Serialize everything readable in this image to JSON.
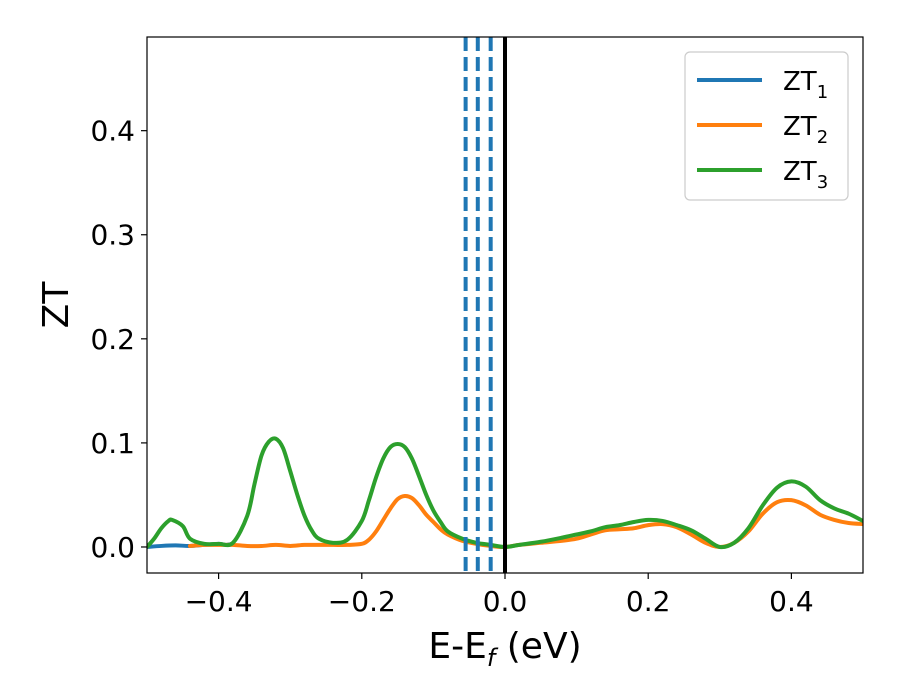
{
  "chart_data": {
    "type": "line",
    "xlabel": "E-E",
    "xlabel_sub": "f",
    "xlabel_unit": " (eV)",
    "ylabel": "ZT",
    "xlim": [
      -0.5,
      0.5
    ],
    "ylim": [
      -0.025,
      0.49
    ],
    "x_ticks": [
      -0.4,
      -0.2,
      0.0,
      0.2,
      0.4
    ],
    "x_tick_labels": [
      "−0.4",
      "−0.2",
      "0.0",
      "0.2",
      "0.4"
    ],
    "y_ticks": [
      0.0,
      0.1,
      0.2,
      0.3,
      0.4
    ],
    "y_tick_labels": [
      "0.0",
      "0.1",
      "0.2",
      "0.3",
      "0.4"
    ],
    "grid": false,
    "legend_position": "top-right",
    "vertical_lines": [
      {
        "x": -0.055,
        "style": "dashed",
        "color": "#1f77b4"
      },
      {
        "x": -0.038,
        "style": "dashed",
        "color": "#1f77b4"
      },
      {
        "x": -0.02,
        "style": "dashed",
        "color": "#1f77b4"
      },
      {
        "x": 0.0,
        "style": "solid",
        "color": "#000000"
      }
    ],
    "series": [
      {
        "name": "ZT",
        "name_sub": "1",
        "color": "#1f77b4",
        "x": [
          -0.5,
          -0.48,
          -0.46,
          -0.44,
          -0.42,
          -0.4,
          -0.39,
          -0.38
        ],
        "y": [
          0.0,
          0.001,
          0.0015,
          0.001,
          0.002,
          0.003,
          0.002,
          0.003
        ]
      },
      {
        "name": "ZT",
        "name_sub": "2",
        "color": "#ff7f0e",
        "x": [
          -0.44,
          -0.42,
          -0.4,
          -0.38,
          -0.36,
          -0.34,
          -0.32,
          -0.3,
          -0.28,
          -0.26,
          -0.24,
          -0.22,
          -0.2,
          -0.19,
          -0.18,
          -0.17,
          -0.16,
          -0.15,
          -0.14,
          -0.13,
          -0.12,
          -0.11,
          -0.1,
          -0.09,
          -0.08,
          -0.06,
          -0.04,
          -0.02,
          0.0,
          0.02,
          0.05,
          0.08,
          0.1,
          0.12,
          0.14,
          0.16,
          0.18,
          0.2,
          0.22,
          0.24,
          0.26,
          0.28,
          0.3,
          0.32,
          0.34,
          0.36,
          0.38,
          0.4,
          0.42,
          0.44,
          0.46,
          0.48,
          0.5
        ],
        "y": [
          0.001,
          0.002,
          0.002,
          0.002,
          0.001,
          0.001,
          0.002,
          0.001,
          0.002,
          0.002,
          0.002,
          0.002,
          0.003,
          0.007,
          0.015,
          0.026,
          0.037,
          0.046,
          0.049,
          0.047,
          0.04,
          0.031,
          0.024,
          0.017,
          0.012,
          0.006,
          0.003,
          0.001,
          0.0,
          0.002,
          0.004,
          0.006,
          0.008,
          0.012,
          0.016,
          0.017,
          0.018,
          0.021,
          0.022,
          0.019,
          0.012,
          0.004,
          0.0,
          0.004,
          0.015,
          0.032,
          0.043,
          0.045,
          0.04,
          0.031,
          0.026,
          0.023,
          0.022
        ]
      },
      {
        "name": "ZT",
        "name_sub": "3",
        "color": "#2ca02c",
        "x": [
          -0.5,
          -0.49,
          -0.48,
          -0.47,
          -0.465,
          -0.45,
          -0.44,
          -0.42,
          -0.4,
          -0.38,
          -0.36,
          -0.35,
          -0.34,
          -0.33,
          -0.32,
          -0.31,
          -0.3,
          -0.29,
          -0.28,
          -0.27,
          -0.26,
          -0.24,
          -0.22,
          -0.2,
          -0.19,
          -0.18,
          -0.17,
          -0.16,
          -0.15,
          -0.14,
          -0.13,
          -0.12,
          -0.11,
          -0.1,
          -0.09,
          -0.08,
          -0.06,
          -0.04,
          -0.02,
          0.0,
          0.02,
          0.05,
          0.08,
          0.1,
          0.12,
          0.14,
          0.16,
          0.18,
          0.2,
          0.22,
          0.24,
          0.26,
          0.28,
          0.3,
          0.32,
          0.34,
          0.36,
          0.38,
          0.4,
          0.42,
          0.44,
          0.46,
          0.48,
          0.5
        ],
        "y": [
          0.0,
          0.008,
          0.018,
          0.025,
          0.026,
          0.02,
          0.008,
          0.003,
          0.003,
          0.004,
          0.03,
          0.06,
          0.088,
          0.101,
          0.104,
          0.095,
          0.073,
          0.05,
          0.03,
          0.016,
          0.008,
          0.004,
          0.007,
          0.025,
          0.045,
          0.067,
          0.085,
          0.096,
          0.099,
          0.096,
          0.085,
          0.068,
          0.05,
          0.035,
          0.024,
          0.015,
          0.008,
          0.004,
          0.002,
          0.0,
          0.002,
          0.005,
          0.009,
          0.012,
          0.015,
          0.019,
          0.021,
          0.024,
          0.026,
          0.025,
          0.021,
          0.016,
          0.008,
          0.0,
          0.004,
          0.018,
          0.04,
          0.057,
          0.063,
          0.058,
          0.045,
          0.037,
          0.032,
          0.025
        ]
      }
    ]
  }
}
